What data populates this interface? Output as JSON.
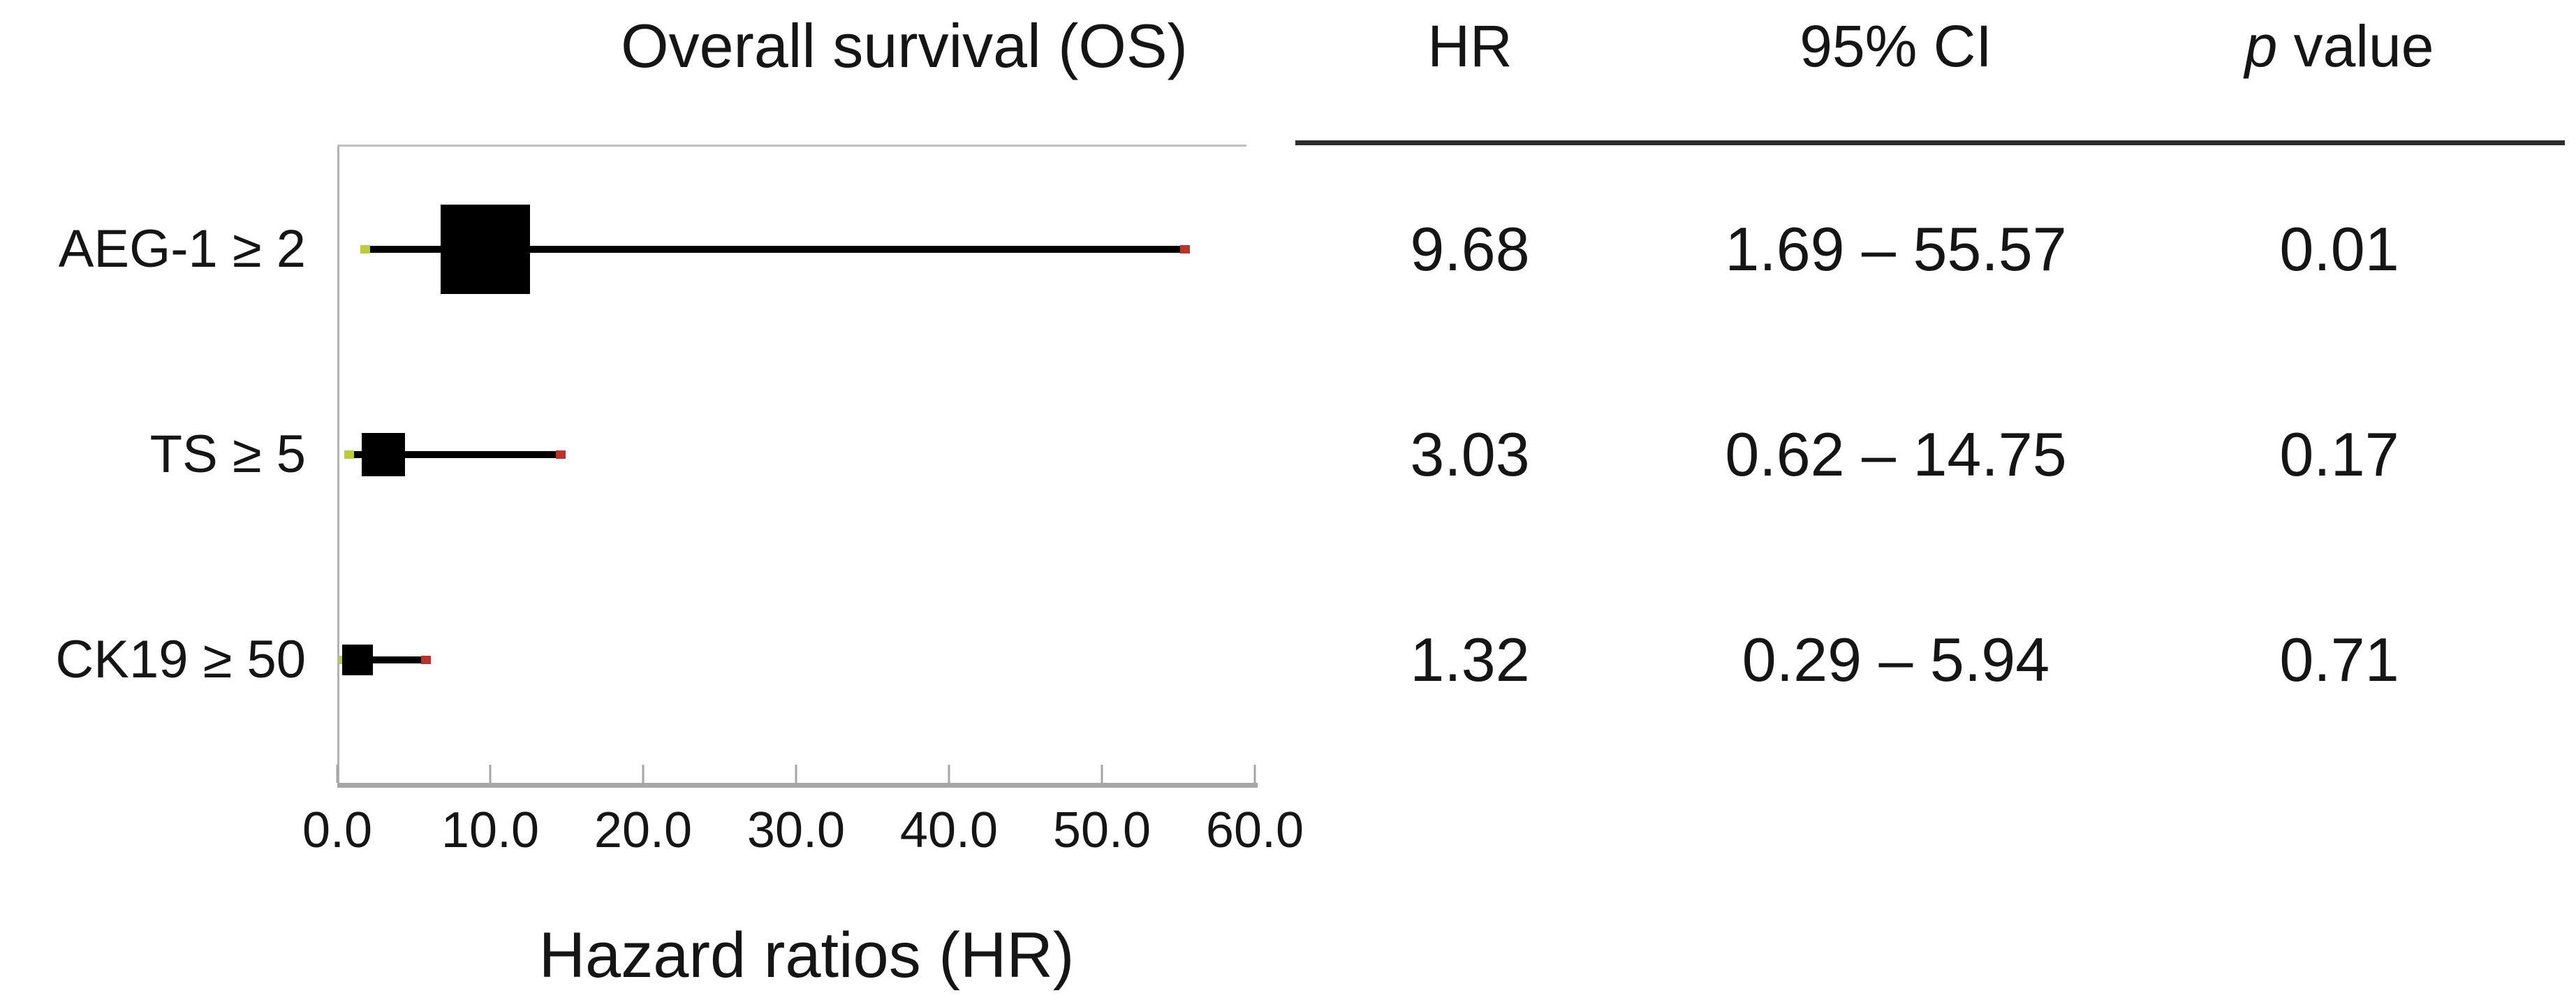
{
  "chart_data": {
    "type": "scatter",
    "subtype": "forest-plot",
    "title": "Overall survival (OS)",
    "xlabel": "Hazard ratios (HR)",
    "xlim": [
      0,
      60
    ],
    "xticks": [
      0,
      10,
      20,
      30,
      40,
      50,
      60
    ],
    "xtick_labels": [
      "0.0",
      "10.0",
      "20.0",
      "30.0",
      "40.0",
      "50.0",
      "60.0"
    ],
    "grid": false,
    "legend": "none",
    "marker_color": "#000000",
    "whisker_color": "#000000",
    "ci_low_tip_color": "#bdcc3c",
    "ci_high_tip_color": "#b8332a",
    "axis_color": "#a6a6a6",
    "rows": [
      {
        "label": "AEG-1 ≥ 2",
        "hr": 9.68,
        "ci_low": 1.69,
        "ci_high": 55.57,
        "p": 0.01,
        "marker_px": 128
      },
      {
        "label": "TS ≥ 5",
        "hr": 3.03,
        "ci_low": 0.62,
        "ci_high": 14.75,
        "p": 0.17,
        "marker_px": 62
      },
      {
        "label": "CK19 ≥ 50",
        "hr": 1.32,
        "ci_low": 0.29,
        "ci_high": 5.94,
        "p": 0.71,
        "marker_px": 44
      }
    ]
  },
  "table": {
    "columns": [
      {
        "label": "HR",
        "italic_prefix": ""
      },
      {
        "label": "95% CI",
        "italic_prefix": ""
      },
      {
        "label": "p value",
        "italic_prefix": "p"
      }
    ],
    "rows": [
      [
        "9.68",
        "1.69 – 55.57",
        "0.01"
      ],
      [
        "3.03",
        "0.62 – 14.75",
        "0.17"
      ],
      [
        "1.32",
        "0.29 – 5.94",
        "0.71"
      ]
    ]
  }
}
